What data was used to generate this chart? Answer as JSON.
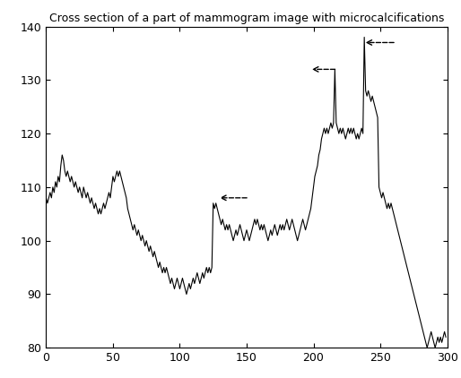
{
  "title": "Cross section of a part of mammogram image with microcalcifications",
  "xlim": [
    0,
    300
  ],
  "ylim": [
    80,
    140
  ],
  "xticks": [
    0,
    50,
    100,
    150,
    200,
    250,
    300
  ],
  "yticks": [
    80,
    90,
    100,
    110,
    120,
    130,
    140
  ],
  "line_color": "#000000",
  "background_color": "#ffffff",
  "arrows": [
    {
      "tip_x": 128,
      "tip_y": 108,
      "tail_x": 152,
      "tail_y": 108
    },
    {
      "tip_x": 197,
      "tip_y": 132,
      "tail_x": 218,
      "tail_y": 132
    },
    {
      "tip_x": 237,
      "tip_y": 137,
      "tail_x": 262,
      "tail_y": 137
    }
  ],
  "signal": [
    108,
    107,
    108,
    109,
    108,
    110,
    109,
    111,
    110,
    112,
    111,
    114,
    116,
    115,
    113,
    112,
    113,
    112,
    111,
    112,
    111,
    110,
    111,
    110,
    109,
    110,
    109,
    108,
    110,
    109,
    108,
    109,
    108,
    107,
    108,
    107,
    106,
    107,
    106,
    105,
    106,
    105,
    106,
    107,
    106,
    107,
    108,
    109,
    108,
    110,
    112,
    111,
    112,
    113,
    112,
    113,
    112,
    111,
    110,
    109,
    108,
    106,
    105,
    104,
    103,
    102,
    103,
    102,
    101,
    102,
    101,
    100,
    101,
    100,
    99,
    100,
    99,
    98,
    99,
    98,
    97,
    98,
    97,
    96,
    95,
    96,
    95,
    94,
    95,
    94,
    95,
    94,
    93,
    92,
    93,
    92,
    91,
    92,
    93,
    92,
    91,
    92,
    93,
    92,
    91,
    90,
    91,
    92,
    91,
    92,
    93,
    92,
    93,
    94,
    93,
    92,
    93,
    94,
    93,
    94,
    95,
    94,
    95,
    94,
    95,
    107,
    106,
    107,
    106,
    105,
    104,
    103,
    104,
    103,
    102,
    103,
    102,
    103,
    102,
    101,
    100,
    101,
    102,
    101,
    102,
    103,
    102,
    101,
    100,
    101,
    102,
    101,
    100,
    101,
    102,
    103,
    104,
    103,
    104,
    103,
    102,
    103,
    102,
    103,
    102,
    101,
    100,
    101,
    102,
    101,
    102,
    103,
    102,
    101,
    102,
    103,
    102,
    103,
    102,
    103,
    104,
    103,
    102,
    103,
    104,
    103,
    102,
    101,
    100,
    101,
    102,
    103,
    104,
    103,
    102,
    103,
    104,
    105,
    106,
    108,
    110,
    112,
    113,
    114,
    116,
    117,
    119,
    120,
    121,
    120,
    121,
    120,
    121,
    122,
    121,
    122,
    132,
    122,
    121,
    120,
    121,
    120,
    121,
    120,
    119,
    120,
    121,
    120,
    121,
    120,
    121,
    120,
    119,
    120,
    119,
    120,
    121,
    120,
    138,
    128,
    127,
    128,
    127,
    126,
    127,
    126,
    125,
    124,
    123,
    110,
    109,
    108,
    109,
    108,
    107,
    106,
    107,
    106,
    107,
    106,
    105,
    104,
    103,
    102,
    101,
    100,
    99,
    98,
    97,
    96,
    95,
    94,
    93,
    92,
    91,
    90,
    89,
    88,
    87,
    86,
    85,
    84,
    83,
    82,
    81,
    80,
    81,
    82,
    83,
    82,
    81,
    80,
    81,
    82,
    81,
    82,
    81,
    82,
    83,
    82
  ]
}
